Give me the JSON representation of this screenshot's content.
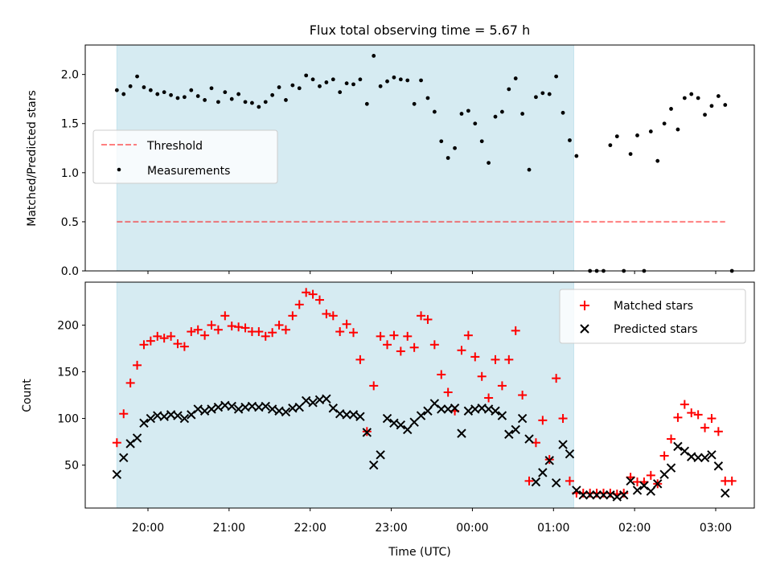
{
  "title": "Flux total observing time = 5.67 h",
  "colors": {
    "shade": "#add8e6",
    "threshold": "#ff0000",
    "measurements": "#000000",
    "matched": "#ff0000",
    "predicted": "#000000"
  },
  "chart_data": [
    {
      "type": "scatter",
      "panel": "top",
      "ylabel": "Matched/Predicted stars",
      "ylim": [
        0,
        2.3
      ],
      "yticks": [
        "0.0",
        "0.5",
        "1.0",
        "1.5",
        "2.0"
      ],
      "legend": {
        "position": "center-left",
        "threshold_label": "Threshold",
        "measurements_label": "Measurements"
      },
      "shaded_interval": [
        "19:37",
        "01:15"
      ],
      "threshold": {
        "value": 0.5,
        "x_start": "19:37",
        "x_end": "03:07"
      },
      "measurements": [
        [
          "19:37",
          1.84
        ],
        [
          "19:42",
          1.8
        ],
        [
          "19:47",
          1.88
        ],
        [
          "19:52",
          1.98
        ],
        [
          "19:57",
          1.87
        ],
        [
          "20:02",
          1.84
        ],
        [
          "20:07",
          1.8
        ],
        [
          "20:12",
          1.82
        ],
        [
          "20:17",
          1.79
        ],
        [
          "20:22",
          1.76
        ],
        [
          "20:27",
          1.77
        ],
        [
          "20:32",
          1.84
        ],
        [
          "20:37",
          1.78
        ],
        [
          "20:42",
          1.74
        ],
        [
          "20:47",
          1.86
        ],
        [
          "20:52",
          1.72
        ],
        [
          "20:57",
          1.82
        ],
        [
          "21:02",
          1.75
        ],
        [
          "21:07",
          1.8
        ],
        [
          "21:12",
          1.72
        ],
        [
          "21:17",
          1.71
        ],
        [
          "21:22",
          1.67
        ],
        [
          "21:27",
          1.72
        ],
        [
          "21:32",
          1.79
        ],
        [
          "21:37",
          1.87
        ],
        [
          "21:42",
          1.74
        ],
        [
          "21:47",
          1.89
        ],
        [
          "21:52",
          1.86
        ],
        [
          "21:57",
          1.99
        ],
        [
          "22:02",
          1.95
        ],
        [
          "22:07",
          1.88
        ],
        [
          "22:12",
          1.92
        ],
        [
          "22:17",
          1.95
        ],
        [
          "22:22",
          1.82
        ],
        [
          "22:27",
          1.91
        ],
        [
          "22:32",
          1.9
        ],
        [
          "22:37",
          1.95
        ],
        [
          "22:42",
          1.7
        ],
        [
          "22:47",
          2.19
        ],
        [
          "22:52",
          1.88
        ],
        [
          "22:57",
          1.93
        ],
        [
          "23:02",
          1.97
        ],
        [
          "23:07",
          1.95
        ],
        [
          "23:12",
          1.94
        ],
        [
          "23:17",
          1.7
        ],
        [
          "23:22",
          1.94
        ],
        [
          "23:27",
          1.76
        ],
        [
          "23:32",
          1.62
        ],
        [
          "23:37",
          1.32
        ],
        [
          "23:42",
          1.15
        ],
        [
          "23:47",
          1.25
        ],
        [
          "23:52",
          1.6
        ],
        [
          "23:57",
          1.63
        ],
        [
          "00:02",
          1.5
        ],
        [
          "00:07",
          1.32
        ],
        [
          "00:12",
          1.1
        ],
        [
          "00:17",
          1.57
        ],
        [
          "00:22",
          1.62
        ],
        [
          "00:27",
          1.85
        ],
        [
          "00:32",
          1.96
        ],
        [
          "00:37",
          1.6
        ],
        [
          "00:42",
          1.03
        ],
        [
          "00:47",
          1.77
        ],
        [
          "00:52",
          1.81
        ],
        [
          "00:57",
          1.8
        ],
        [
          "01:02",
          1.98
        ],
        [
          "01:07",
          1.61
        ],
        [
          "01:12",
          1.33
        ],
        [
          "01:17",
          1.17
        ],
        [
          "01:27",
          0.0
        ],
        [
          "01:32",
          0.0
        ],
        [
          "01:37",
          0.0
        ],
        [
          "01:42",
          1.28
        ],
        [
          "01:47",
          1.37
        ],
        [
          "01:52",
          0.0
        ],
        [
          "01:57",
          1.19
        ],
        [
          "02:02",
          1.38
        ],
        [
          "02:07",
          0.0
        ],
        [
          "02:12",
          1.42
        ],
        [
          "02:17",
          1.12
        ],
        [
          "02:22",
          1.5
        ],
        [
          "02:27",
          1.65
        ],
        [
          "02:32",
          1.44
        ],
        [
          "02:37",
          1.76
        ],
        [
          "02:42",
          1.8
        ],
        [
          "02:47",
          1.76
        ],
        [
          "02:52",
          1.59
        ],
        [
          "02:57",
          1.68
        ],
        [
          "03:02",
          1.78
        ],
        [
          "03:07",
          1.69
        ],
        [
          "03:12",
          0.0
        ]
      ]
    },
    {
      "type": "scatter",
      "panel": "bottom",
      "xlabel": "Time (UTC)",
      "ylabel": "Count",
      "ylim": [
        4,
        246
      ],
      "yticks": [
        "50",
        "100",
        "150",
        "200"
      ],
      "xticks": [
        "20:00",
        "21:00",
        "22:00",
        "23:00",
        "00:00",
        "01:00",
        "02:00",
        "03:00"
      ],
      "legend": {
        "position": "top-right",
        "matched_label": "Matched stars",
        "predicted_label": "Predicted stars"
      },
      "shaded_interval": [
        "19:37",
        "01:15"
      ],
      "matched": [
        [
          "19:37",
          74
        ],
        [
          "19:42",
          105
        ],
        [
          "19:47",
          138
        ],
        [
          "19:52",
          157
        ],
        [
          "19:57",
          179
        ],
        [
          "20:02",
          183
        ],
        [
          "20:07",
          188
        ],
        [
          "20:12",
          186
        ],
        [
          "20:17",
          188
        ],
        [
          "20:22",
          180
        ],
        [
          "20:27",
          177
        ],
        [
          "20:32",
          193
        ],
        [
          "20:37",
          195
        ],
        [
          "20:42",
          189
        ],
        [
          "20:47",
          200
        ],
        [
          "20:52",
          195
        ],
        [
          "20:57",
          210
        ],
        [
          "21:02",
          199
        ],
        [
          "21:07",
          198
        ],
        [
          "21:12",
          197
        ],
        [
          "21:17",
          193
        ],
        [
          "21:22",
          193
        ],
        [
          "21:27",
          188
        ],
        [
          "21:32",
          192
        ],
        [
          "21:37",
          200
        ],
        [
          "21:42",
          195
        ],
        [
          "21:47",
          210
        ],
        [
          "21:52",
          222
        ],
        [
          "21:57",
          235
        ],
        [
          "22:02",
          233
        ],
        [
          "22:07",
          227
        ],
        [
          "22:12",
          212
        ],
        [
          "22:17",
          210
        ],
        [
          "22:22",
          193
        ],
        [
          "22:27",
          201
        ],
        [
          "22:32",
          192
        ],
        [
          "22:37",
          163
        ],
        [
          "22:42",
          86
        ],
        [
          "22:47",
          135
        ],
        [
          "22:52",
          188
        ],
        [
          "22:57",
          179
        ],
        [
          "23:02",
          189
        ],
        [
          "23:07",
          172
        ],
        [
          "23:12",
          188
        ],
        [
          "23:17",
          176
        ],
        [
          "23:22",
          210
        ],
        [
          "23:27",
          206
        ],
        [
          "23:32",
          179
        ],
        [
          "23:37",
          147
        ],
        [
          "23:42",
          128
        ],
        [
          "23:47",
          108
        ],
        [
          "23:52",
          173
        ],
        [
          "23:57",
          189
        ],
        [
          "00:02",
          166
        ],
        [
          "00:07",
          145
        ],
        [
          "00:12",
          122
        ],
        [
          "00:17",
          163
        ],
        [
          "00:22",
          135
        ],
        [
          "00:27",
          163
        ],
        [
          "00:32",
          194
        ],
        [
          "00:37",
          125
        ],
        [
          "00:42",
          33
        ],
        [
          "00:47",
          74
        ],
        [
          "00:52",
          98
        ],
        [
          "00:57",
          56
        ],
        [
          "01:02",
          143
        ],
        [
          "01:07",
          100
        ],
        [
          "01:12",
          33
        ],
        [
          "01:17",
          20
        ],
        [
          "01:22",
          20
        ],
        [
          "01:27",
          20
        ],
        [
          "01:32",
          20
        ],
        [
          "01:37",
          20
        ],
        [
          "01:42",
          20
        ],
        [
          "01:47",
          19
        ],
        [
          "01:52",
          20
        ],
        [
          "01:57",
          37
        ],
        [
          "02:02",
          32
        ],
        [
          "02:07",
          32
        ],
        [
          "02:12",
          39
        ],
        [
          "02:17",
          30
        ],
        [
          "02:22",
          60
        ],
        [
          "02:27",
          78
        ],
        [
          "02:32",
          101
        ],
        [
          "02:37",
          115
        ],
        [
          "02:42",
          106
        ],
        [
          "02:47",
          104
        ],
        [
          "02:52",
          90
        ],
        [
          "02:57",
          100
        ],
        [
          "03:02",
          86
        ],
        [
          "03:07",
          33
        ],
        [
          "03:12",
          33
        ]
      ],
      "predicted": [
        [
          "19:37",
          40
        ],
        [
          "19:42",
          58
        ],
        [
          "19:47",
          73
        ],
        [
          "19:52",
          79
        ],
        [
          "19:57",
          95
        ],
        [
          "20:02",
          100
        ],
        [
          "20:07",
          103
        ],
        [
          "20:12",
          102
        ],
        [
          "20:17",
          104
        ],
        [
          "20:22",
          103
        ],
        [
          "20:27",
          100
        ],
        [
          "20:32",
          104
        ],
        [
          "20:37",
          110
        ],
        [
          "20:42",
          108
        ],
        [
          "20:47",
          110
        ],
        [
          "20:52",
          112
        ],
        [
          "20:57",
          114
        ],
        [
          "21:02",
          113
        ],
        [
          "21:07",
          110
        ],
        [
          "21:12",
          112
        ],
        [
          "21:17",
          113
        ],
        [
          "21:22",
          112
        ],
        [
          "21:27",
          113
        ],
        [
          "21:32",
          110
        ],
        [
          "21:37",
          108
        ],
        [
          "21:42",
          107
        ],
        [
          "21:47",
          111
        ],
        [
          "21:52",
          112
        ],
        [
          "21:57",
          119
        ],
        [
          "22:02",
          117
        ],
        [
          "22:07",
          120
        ],
        [
          "22:12",
          121
        ],
        [
          "22:17",
          111
        ],
        [
          "22:22",
          105
        ],
        [
          "22:27",
          104
        ],
        [
          "22:32",
          104
        ],
        [
          "22:37",
          102
        ],
        [
          "22:42",
          85
        ],
        [
          "22:47",
          50
        ],
        [
          "22:52",
          61
        ],
        [
          "22:57",
          100
        ],
        [
          "23:02",
          95
        ],
        [
          "23:07",
          93
        ],
        [
          "23:12",
          88
        ],
        [
          "23:17",
          96
        ],
        [
          "23:22",
          103
        ],
        [
          "23:27",
          108
        ],
        [
          "23:32",
          116
        ],
        [
          "23:37",
          110
        ],
        [
          "23:42",
          110
        ],
        [
          "23:47",
          111
        ],
        [
          "23:52",
          84
        ],
        [
          "23:57",
          108
        ],
        [
          "00:02",
          110
        ],
        [
          "00:07",
          111
        ],
        [
          "00:12",
          110
        ],
        [
          "00:17",
          108
        ],
        [
          "00:22",
          103
        ],
        [
          "00:27",
          83
        ],
        [
          "00:32",
          88
        ],
        [
          "00:37",
          100
        ],
        [
          "00:42",
          78
        ],
        [
          "00:47",
          32
        ],
        [
          "00:52",
          42
        ],
        [
          "00:57",
          55
        ],
        [
          "01:02",
          31
        ],
        [
          "01:07",
          72
        ],
        [
          "01:12",
          62
        ],
        [
          "01:17",
          23
        ],
        [
          "01:22",
          18
        ],
        [
          "01:27",
          18
        ],
        [
          "01:32",
          18
        ],
        [
          "01:37",
          18
        ],
        [
          "01:42",
          18
        ],
        [
          "01:47",
          16
        ],
        [
          "01:52",
          18
        ],
        [
          "01:57",
          33
        ],
        [
          "02:02",
          23
        ],
        [
          "02:07",
          28
        ],
        [
          "02:12",
          22
        ],
        [
          "02:17",
          30
        ],
        [
          "02:22",
          40
        ],
        [
          "02:27",
          47
        ],
        [
          "02:32",
          70
        ],
        [
          "02:37",
          65
        ],
        [
          "02:42",
          59
        ],
        [
          "02:47",
          58
        ],
        [
          "02:52",
          58
        ],
        [
          "02:57",
          61
        ],
        [
          "03:02",
          49
        ],
        [
          "03:07",
          20
        ]
      ]
    }
  ]
}
